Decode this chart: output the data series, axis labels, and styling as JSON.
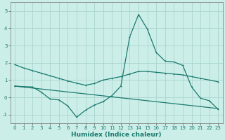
{
  "bg_color": "#cceee8",
  "grid_color": "#aad4ce",
  "line_color": "#1a7a6e",
  "xlabel": "Humidex (Indice chaleur)",
  "ylim": [
    -1.5,
    5.5
  ],
  "xlim": [
    -0.5,
    23.5
  ],
  "yticks": [
    -1,
    0,
    1,
    2,
    3,
    4,
    5
  ],
  "xticks": [
    0,
    1,
    2,
    3,
    4,
    5,
    6,
    7,
    8,
    9,
    10,
    11,
    12,
    13,
    14,
    15,
    16,
    17,
    18,
    19,
    20,
    21,
    22,
    23
  ],
  "series1_x": [
    0,
    1,
    2,
    3,
    4,
    5,
    6,
    7,
    8,
    9,
    10,
    11,
    12,
    13,
    14,
    15,
    16,
    17,
    18,
    19,
    20,
    21,
    22,
    23
  ],
  "series1_y": [
    1.9,
    1.7,
    1.55,
    1.4,
    1.25,
    1.1,
    0.95,
    0.82,
    0.7,
    0.8,
    1.0,
    1.1,
    1.2,
    1.35,
    1.5,
    1.5,
    1.45,
    1.4,
    1.35,
    1.3,
    1.2,
    1.1,
    1.0,
    0.9
  ],
  "series2_x": [
    0,
    1,
    2,
    3,
    4,
    5,
    6,
    7,
    8,
    9,
    10,
    11,
    12,
    13,
    14,
    15,
    16,
    17,
    18,
    19,
    20,
    21,
    22,
    23
  ],
  "series2_y": [
    0.65,
    0.62,
    0.6,
    0.3,
    -0.1,
    -0.15,
    -0.5,
    -1.15,
    -0.75,
    -0.45,
    -0.25,
    0.1,
    0.65,
    3.5,
    4.8,
    3.95,
    2.6,
    2.1,
    2.05,
    1.85,
    0.6,
    -0.05,
    -0.2,
    -0.7
  ],
  "series3_x": [
    0,
    23
  ],
  "series3_y": [
    0.65,
    -0.65
  ],
  "title_fontsize": 7,
  "xlabel_fontsize": 6.5,
  "tick_fontsize": 5,
  "linewidth": 0.9,
  "markersize": 2.0
}
